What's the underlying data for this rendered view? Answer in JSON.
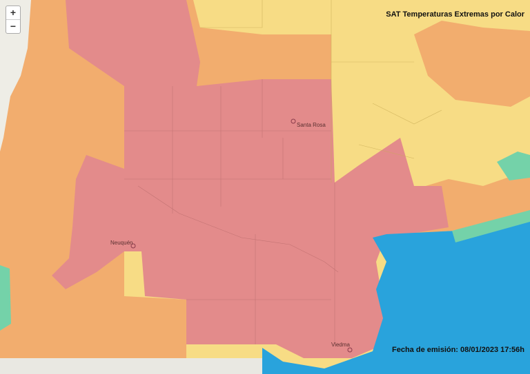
{
  "header": {
    "title": "SAT Temperaturas Extremas por Calor",
    "issued": "Fecha de emisión: 08/01/2023 17:56h"
  },
  "zoom": {
    "in": "+",
    "out": "−"
  },
  "cities": [
    {
      "label": "Santa Rosa"
    },
    {
      "label": "Neuquén"
    },
    {
      "label": "Viedma"
    }
  ]
}
